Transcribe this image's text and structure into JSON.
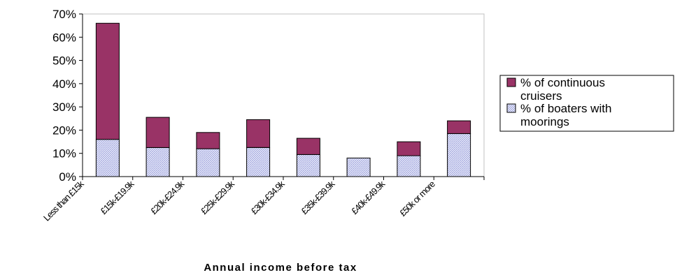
{
  "chart_data": {
    "type": "bar",
    "stacked": true,
    "categories": [
      "Less than £15k",
      "£15k-£19.9k",
      "£20k-£24.9k",
      "£25k-£29.9k",
      "£30k-£34.9k",
      "£35k-£39.9k",
      "£40k-£49.9k",
      "£50k or more"
    ],
    "series": [
      {
        "name": "% of boaters with moorings",
        "values": [
          16,
          12.5,
          12,
          12.5,
          9.5,
          8,
          9,
          18.5
        ],
        "color": "#d8dcf4",
        "pattern": "hatched"
      },
      {
        "name": "% of continuous cruisers",
        "values": [
          50,
          13,
          7,
          12,
          7,
          0,
          6,
          5.5
        ],
        "color": "#993366"
      }
    ],
    "legend_series": [
      {
        "lines": [
          "% of continuous",
          "cruisers"
        ],
        "color": "#993366"
      },
      {
        "lines": [
          "% of boaters with",
          "moorings"
        ],
        "color": "#d8dcf4"
      }
    ],
    "xlabel": "Annual income before tax",
    "ylabel": "",
    "ylim": [
      0,
      70
    ],
    "yticks": [
      0,
      10,
      20,
      30,
      40,
      50,
      60,
      70
    ],
    "ytick_labels": [
      "0%",
      "10%",
      "20%",
      "30%",
      "40%",
      "50%",
      "60%",
      "70%"
    ],
    "grid": false,
    "legend_position": "right"
  }
}
